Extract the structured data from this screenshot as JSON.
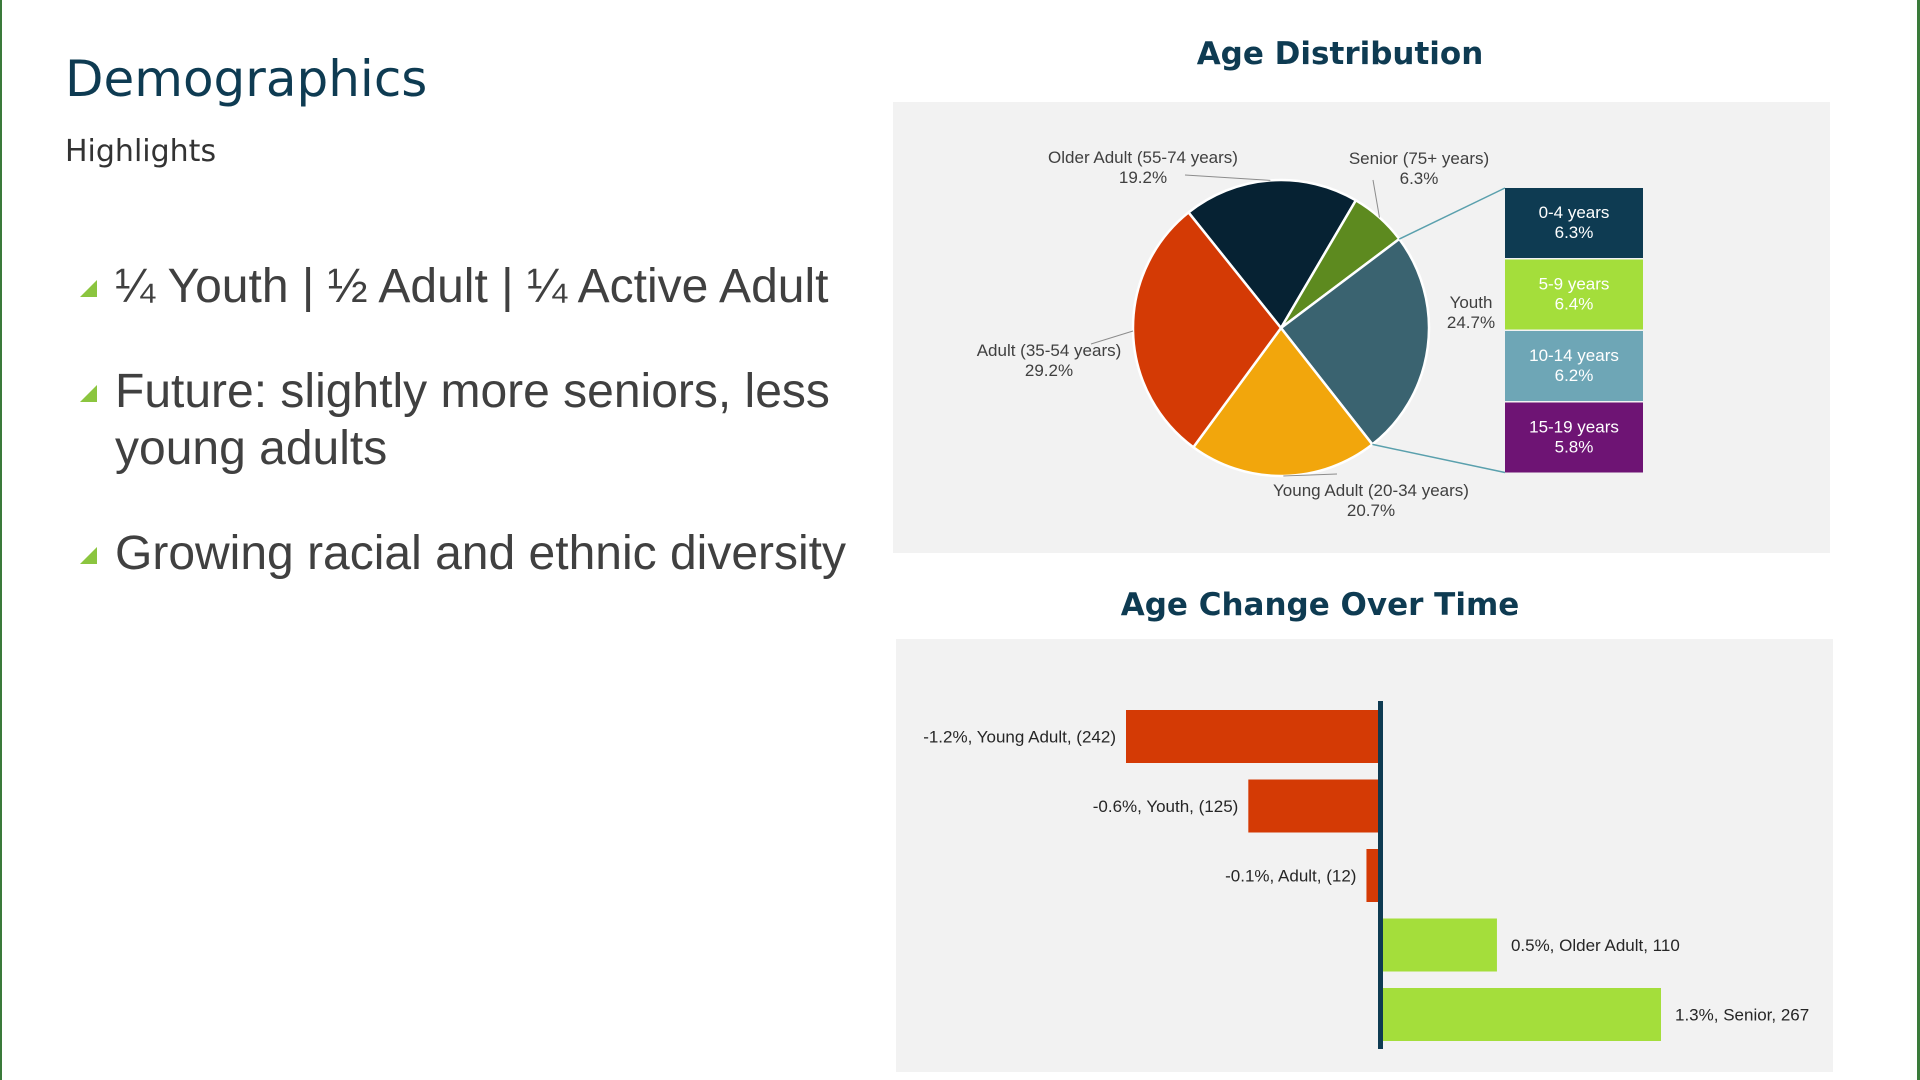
{
  "slide": {
    "title": "Demographics",
    "subtitle": "Highlights",
    "bullets": [
      "¼ Youth | ½ Adult | ¼ Active Adult",
      "Future: slightly more seniors, less young adults",
      "Growing racial and ethnic diversity"
    ],
    "colors": {
      "accent": "#8bc53f",
      "title": "#0e3b52"
    }
  },
  "chart_data": [
    {
      "type": "pie",
      "title": "Age Distribution",
      "slices": [
        {
          "name": "Older Adult (55-74 years)",
          "label": "19.2%",
          "value": 19.2,
          "color": "#062233"
        },
        {
          "name": "Senior (75+ years)",
          "label": "6.3%",
          "value": 6.3,
          "color": "#5d8a1f"
        },
        {
          "name": "Youth",
          "label": "24.7%",
          "value": 24.7,
          "color": "#3a6370"
        },
        {
          "name": "Young Adult (20-34 years)",
          "label": "20.7%",
          "value": 20.7,
          "color": "#f2a60c"
        },
        {
          "name": "Adult (35-54 years)",
          "label": "29.2%",
          "value": 29.2,
          "color": "#d43a05"
        }
      ],
      "breakdown_of": "Youth",
      "breakdown": [
        {
          "name": "0-4 years",
          "label": "6.3%",
          "value": 6.3,
          "color": "#0e3b52"
        },
        {
          "name": "5-9 years",
          "label": "6.4%",
          "value": 6.4,
          "color": "#a4de3b"
        },
        {
          "name": "10-14 years",
          "label": "6.2%",
          "value": 6.2,
          "color": "#6ea6b6"
        },
        {
          "name": "15-19 years",
          "label": "5.8%",
          "value": 5.8,
          "color": "#6e1474"
        }
      ]
    },
    {
      "type": "bar",
      "orientation": "horizontal",
      "title": "Age Change Over Time",
      "categories": [
        "Young Adult",
        "Youth",
        "Adult",
        "Older Adult",
        "Senior"
      ],
      "values": [
        -242,
        -125,
        -12,
        110,
        267
      ],
      "percent_change": [
        -1.2,
        -0.6,
        -0.1,
        0.5,
        1.3
      ],
      "labels": [
        "-1.2%, Young Adult,  (242)",
        "-0.6%, Youth,  (125)",
        "-0.1%, Adult,  (12)",
        "0.5%, Older Adult,  110",
        "1.3%, Senior,  267"
      ],
      "xlim": [
        -242,
        267
      ],
      "colors": {
        "negative": "#d43a05",
        "positive": "#a4de3b",
        "axis": "#0e3b52"
      }
    }
  ]
}
